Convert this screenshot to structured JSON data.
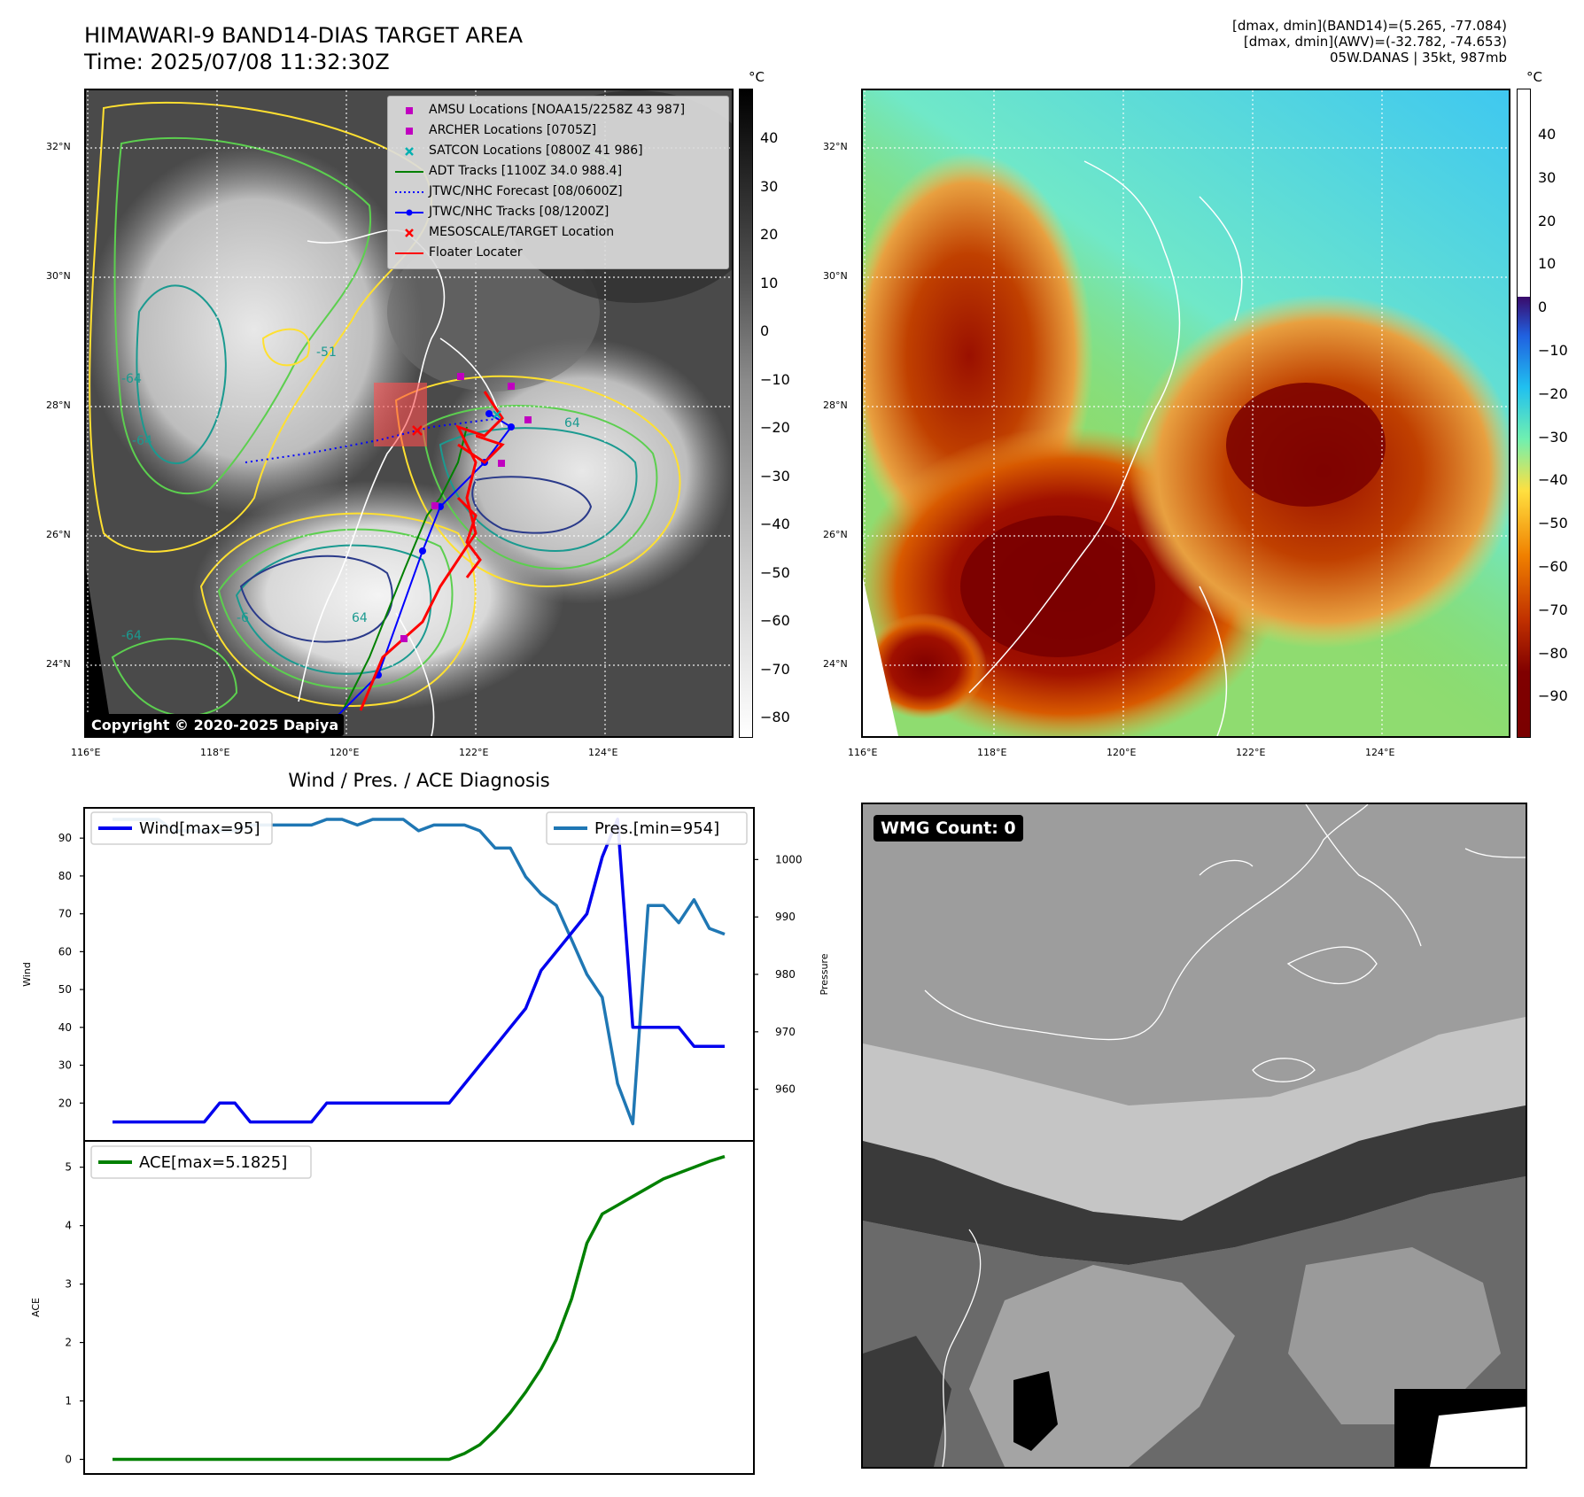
{
  "header": {
    "title_line1": "HIMAWARI-9 BAND14-DIAS TARGET AREA",
    "title_line2": "Time: 2025/07/08 11:32:30Z",
    "diag_line1": "[dmax, dmin](BAND14)=(5.265, -77.084)",
    "diag_line2": "[dmax, dmin](AWV)=(-32.782, -74.653)",
    "diag_line3": "05W.DANAS | 35kt, 987mb"
  },
  "map_axes": {
    "lat_labels": [
      "32°N",
      "30°N",
      "28°N",
      "26°N",
      "24°N"
    ],
    "lon_labels": [
      "116°E",
      "118°E",
      "120°E",
      "122°E",
      "124°E"
    ]
  },
  "colorbar_left": {
    "unit": "°C",
    "ticks": [
      "40",
      "30",
      "20",
      "10",
      "0",
      "−10",
      "−20",
      "−30",
      "−40",
      "−50",
      "−60",
      "−70",
      "−80"
    ]
  },
  "colorbar_right": {
    "unit": "°C",
    "ticks": [
      "40",
      "30",
      "20",
      "10",
      "0",
      "−10",
      "−20",
      "−30",
      "−40",
      "−50",
      "−60",
      "−70",
      "−80",
      "−90"
    ]
  },
  "legend": {
    "items": [
      {
        "label": "AMSU Locations [NOAA15/2258Z 43 987]",
        "color": "#c000c0",
        "symbol": "square"
      },
      {
        "label": "ARCHER Locations [0705Z]",
        "color": "#c000c0",
        "symbol": "square"
      },
      {
        "label": "SATCON Locations [0800Z 41 986]",
        "color": "#00b0b0",
        "symbol": "x"
      },
      {
        "label": "ADT Tracks [1100Z 34.0 988.4]",
        "color": "#008000",
        "symbol": "line"
      },
      {
        "label": "JTWC/NHC Forecast [08/0600Z]",
        "color": "#0000ff",
        "symbol": "dotted"
      },
      {
        "label": "JTWC/NHC Tracks [08/1200Z]",
        "color": "#0000ff",
        "symbol": "line-dot"
      },
      {
        "label": "MESOSCALE/TARGET Location",
        "color": "#ff0000",
        "symbol": "x"
      },
      {
        "label": "Floater Locater",
        "color": "#ff0000",
        "symbol": "line"
      }
    ]
  },
  "contour_labels": [
    "-64",
    "-64",
    "-64",
    "-51",
    "64",
    "64",
    "-6"
  ],
  "copyright": "Copyright © 2020-2025 Dapiya",
  "wmg": {
    "label": "WMG Count: 0"
  },
  "chart_data": [
    {
      "type": "line",
      "title": "Wind / Pres. / ACE Diagnosis",
      "ylabel": "Wind",
      "ylim": [
        10,
        98
      ],
      "yticks": [
        "90",
        "80",
        "70",
        "60",
        "50",
        "40",
        "30",
        "20"
      ],
      "series": [
        {
          "name": "Wind[max=95]",
          "color": "#0000ee",
          "values": [
            15,
            15,
            15,
            15,
            15,
            15,
            15,
            20,
            20,
            15,
            15,
            15,
            15,
            15,
            20,
            20,
            20,
            20,
            20,
            20,
            20,
            20,
            20,
            25,
            30,
            35,
            40,
            45,
            55,
            60,
            65,
            70,
            85,
            95,
            40,
            40,
            40,
            40,
            35,
            35,
            35
          ]
        }
      ],
      "y2label": "Pressure",
      "y2lim": [
        951,
        1009
      ],
      "y2ticks": [
        "1000",
        "990",
        "980",
        "970",
        "960"
      ],
      "series2": [
        {
          "name": "Pres.[min=954]",
          "color": "#1f77b4",
          "values": [
            1007,
            1007,
            1007,
            1007,
            1005,
            1005,
            1005,
            1005,
            1005,
            1006,
            1006,
            1006,
            1006,
            1006,
            1007,
            1007,
            1006,
            1007,
            1007,
            1007,
            1005,
            1006,
            1006,
            1006,
            1005,
            1002,
            1002,
            997,
            994,
            992,
            986,
            980,
            976,
            961,
            954,
            992,
            992,
            989,
            993,
            988,
            987
          ]
        }
      ]
    },
    {
      "type": "line",
      "ylabel": "ACE",
      "ylim": [
        -0.25,
        5.45
      ],
      "yticks": [
        "5",
        "4",
        "3",
        "2",
        "1",
        "0"
      ],
      "series": [
        {
          "name": "ACE[max=5.1825]",
          "color": "#008000",
          "values": [
            0,
            0,
            0,
            0,
            0,
            0,
            0,
            0,
            0,
            0,
            0,
            0,
            0,
            0,
            0,
            0,
            0,
            0,
            0,
            0,
            0,
            0,
            0,
            0.1,
            0.25,
            0.5,
            0.8,
            1.15,
            1.55,
            2.05,
            2.75,
            3.7,
            4.2,
            4.35,
            4.5,
            4.65,
            4.8,
            4.9,
            5.0,
            5.1,
            5.1825
          ]
        }
      ]
    }
  ]
}
